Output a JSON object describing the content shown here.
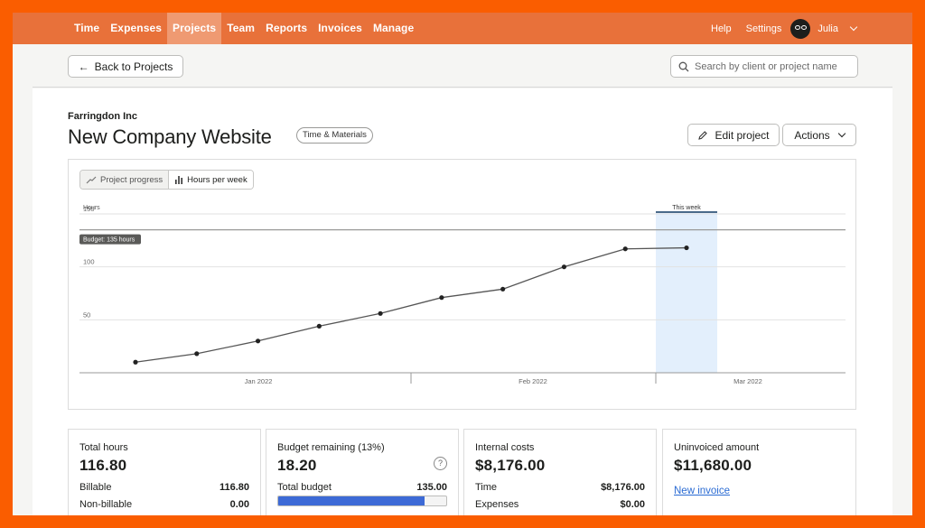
{
  "nav": {
    "items": [
      "Time",
      "Expenses",
      "Projects",
      "Team",
      "Reports",
      "Invoices",
      "Manage"
    ],
    "active": "Projects",
    "help": "Help",
    "settings": "Settings",
    "user": "Julia"
  },
  "toolbar": {
    "back_label": "Back to Projects",
    "search_placeholder": "Search by client or project name"
  },
  "project": {
    "client": "Farringdon Inc",
    "title": "New Company Website",
    "billing_type": "Time & Materials",
    "edit_label": "Edit project",
    "actions_label": "Actions"
  },
  "chart_toggle": {
    "progress_label": "Project progress",
    "hours_label": "Hours per week",
    "active": "Project progress"
  },
  "chart_data": {
    "type": "line",
    "ylabel": "Hours",
    "yticks": [
      150,
      100,
      50
    ],
    "ylim": [
      0,
      150
    ],
    "budget_line": 135,
    "budget_label": "Budget: 135 hours",
    "this_week_label": "This week",
    "x_labels": [
      "Jan 2022",
      "Feb 2022",
      "Mar 2022"
    ],
    "series": [
      {
        "values": [
          10,
          18,
          30,
          44,
          56,
          71,
          79,
          100,
          117,
          118
        ]
      }
    ],
    "highlight_index": 9,
    "line_color": "#555555",
    "highlight_color": "#e3effc"
  },
  "stats": {
    "total_hours": {
      "label": "Total hours",
      "value": "116.80",
      "billable_label": "Billable",
      "billable": "116.80",
      "nonbillable_label": "Non-billable",
      "nonbillable": "0.00"
    },
    "budget": {
      "label": "Budget remaining (13%)",
      "value": "18.20",
      "help": "?",
      "total_label": "Total budget",
      "total": "135.00",
      "used_fraction": 0.87,
      "bar_color": "#3d6ad6"
    },
    "internal": {
      "label": "Internal costs",
      "value": "$8,176.00",
      "time_label": "Time",
      "time": "$8,176.00",
      "expenses_label": "Expenses",
      "expenses": "$0.00"
    },
    "uninvoiced": {
      "label": "Uninvoiced amount",
      "value": "$11,680.00",
      "link": "New invoice"
    }
  },
  "colors": {
    "brand": "#fa5d00",
    "nav": "#e8713a",
    "nav_active": "#ef9a72",
    "link": "#2a6bd3"
  }
}
